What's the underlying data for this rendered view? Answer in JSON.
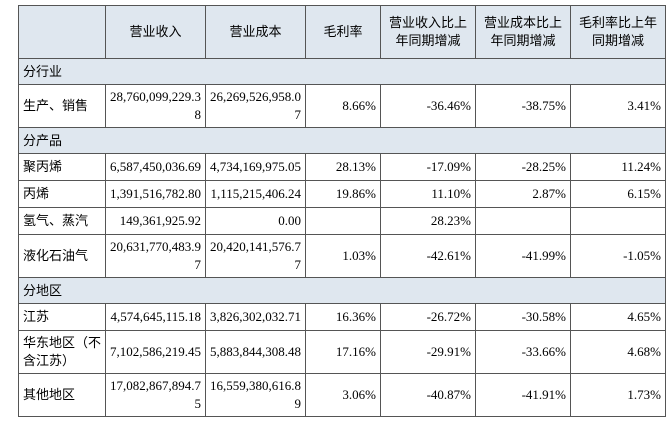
{
  "table": {
    "columns": [
      "营业收入",
      "营业成本",
      "毛利率",
      "营业收入比上年同期增减",
      "营业成本比上年同期增减",
      "毛利率比上年同期增减"
    ],
    "sections": [
      {
        "title": "分行业",
        "rows": [
          [
            "生产、销售",
            "28,760,099,229.38",
            "26,269,526,958.07",
            "8.66%",
            "-36.46%",
            "-38.75%",
            "3.41%"
          ]
        ]
      },
      {
        "title": "分产品",
        "rows": [
          [
            "聚丙烯",
            "6,587,450,036.69",
            "4,734,169,975.05",
            "28.13%",
            "-17.09%",
            "-28.25%",
            "11.24%"
          ],
          [
            "丙烯",
            "1,391,516,782.80",
            "1,115,215,406.24",
            "19.86%",
            "11.10%",
            "2.87%",
            "6.15%"
          ],
          [
            "氢气、蒸汽",
            "149,361,925.92",
            "0.00",
            null,
            "28.23%",
            null,
            null
          ],
          [
            "液化石油气",
            "20,631,770,483.97",
            "20,420,141,576.77",
            "1.03%",
            "-42.61%",
            "-41.99%",
            "-1.05%"
          ]
        ]
      },
      {
        "title": "分地区",
        "rows": [
          [
            "江苏",
            "4,574,645,115.18",
            "3,826,302,032.71",
            "16.36%",
            "-26.72%",
            "-30.58%",
            "4.65%"
          ],
          [
            "华东地区（不含江苏）",
            "7,102,586,219.45",
            "5,883,844,308.48",
            "17.16%",
            "-29.91%",
            "-33.66%",
            "4.68%"
          ],
          [
            "其他地区",
            "17,082,867,894.75",
            "16,559,380,616.89",
            "3.06%",
            "-40.87%",
            "-41.91%",
            "1.73%"
          ]
        ]
      }
    ]
  }
}
